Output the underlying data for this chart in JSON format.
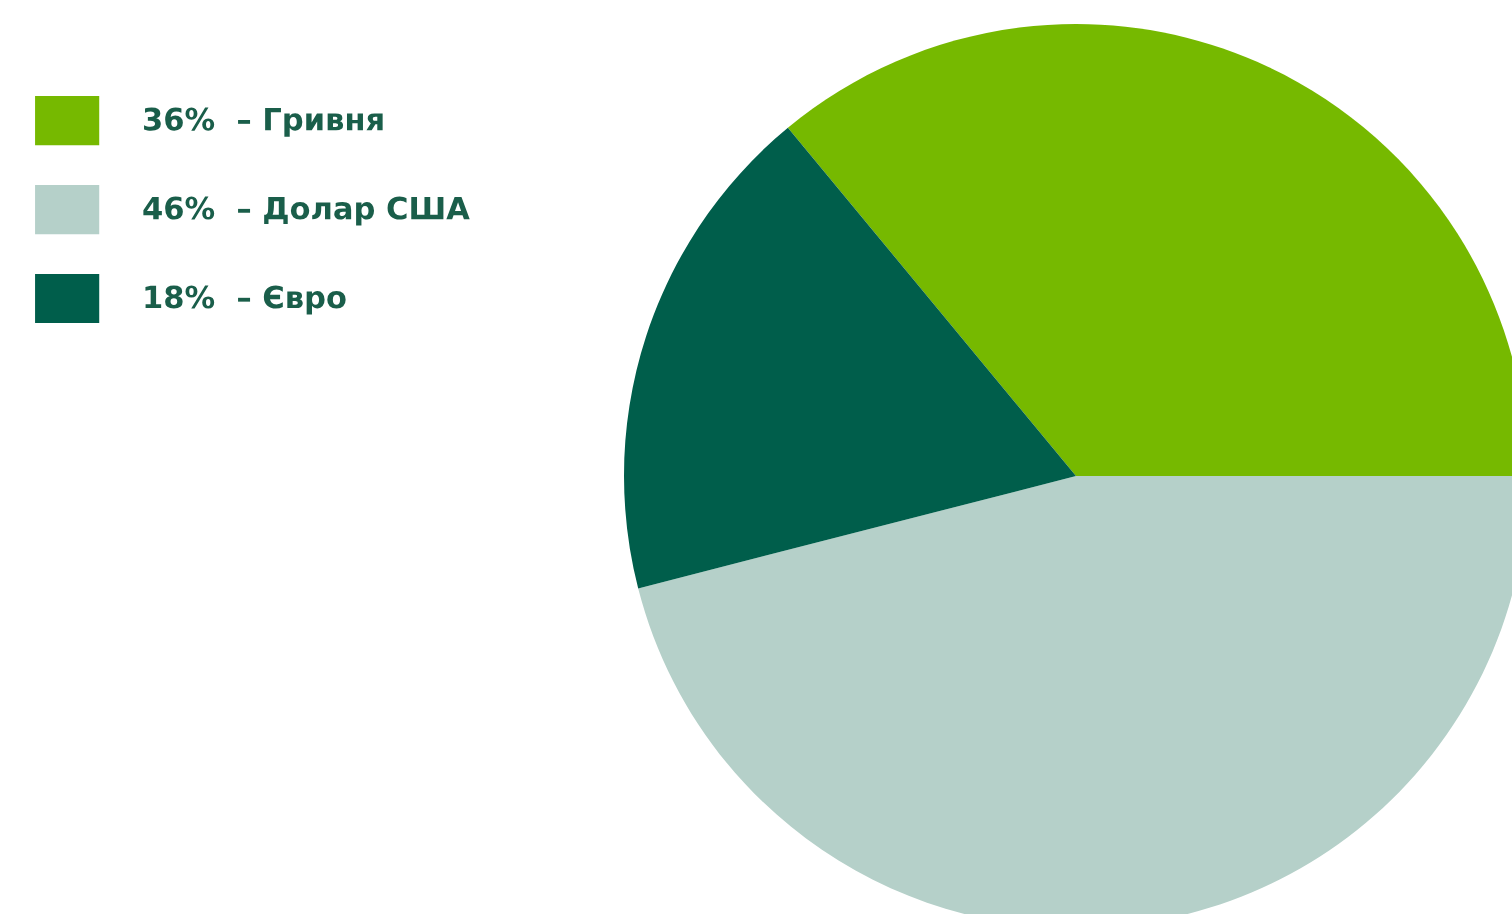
{
  "chart_data": {
    "type": "pie",
    "categories": [
      "Гривня",
      "Долар США",
      "Євро"
    ],
    "values": [
      36,
      46,
      18
    ],
    "value_labels": [
      "36%",
      "46%",
      "18%"
    ],
    "colors": [
      "#76b900",
      "#b5d0c9",
      "#005e4b"
    ],
    "legend": "top left"
  }
}
